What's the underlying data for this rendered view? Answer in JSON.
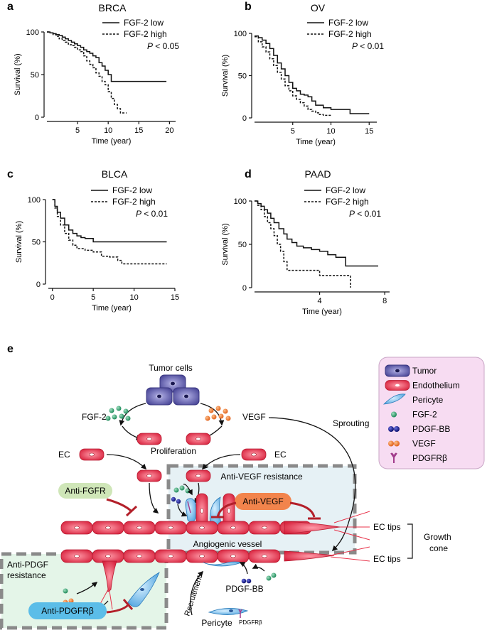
{
  "panels": {
    "a": {
      "letter": "a",
      "title": "BRCA",
      "ylabel": "Survival (%)",
      "xlabel": "Time (year)",
      "legend_low": "FGF-2 low",
      "legend_high": "FGF-2 high",
      "p_label": "P",
      "p_value": "< 0.05"
    },
    "b": {
      "letter": "b",
      "title": "OV",
      "ylabel": "Survival (%)",
      "xlabel": "Time (year)",
      "legend_low": "FGF-2 low",
      "legend_high": "FGF-2 high",
      "p_label": "P",
      "p_value": "< 0.01"
    },
    "c": {
      "letter": "c",
      "title": "BLCA",
      "ylabel": "Survival (%)",
      "xlabel": "Time (year)",
      "legend_low": "FGF-2 low",
      "legend_high": "FGF-2 high",
      "p_label": "P",
      "p_value": "< 0.01"
    },
    "d": {
      "letter": "d",
      "title": "PAAD",
      "ylabel": "Survival (%)",
      "xlabel": "Time (year)",
      "legend_low": "FGF-2 low",
      "legend_high": "FGF-2 high",
      "p_label": "P",
      "p_value": "< 0.01"
    }
  },
  "chart_data": [
    {
      "type": "line",
      "panel": "a",
      "title": "BRCA",
      "xlabel": "Time (year)",
      "ylabel": "Survival (%)",
      "xlim": [
        0,
        21
      ],
      "ylim": [
        0,
        100
      ],
      "xticks": [
        5,
        10,
        15,
        20
      ],
      "yticks": [
        0,
        50,
        100
      ],
      "legend": "top-right",
      "step": true,
      "series": [
        {
          "name": "FGF-2 low",
          "style": "solid",
          "x": [
            0,
            0.5,
            1,
            1.5,
            2,
            2.5,
            3,
            3.5,
            4,
            4.5,
            5,
            5.5,
            6,
            6.5,
            7,
            7.5,
            8,
            8.5,
            9,
            9.5,
            10,
            10.5,
            11,
            19.5
          ],
          "y": [
            100,
            99,
            98,
            97,
            96,
            94,
            92,
            90,
            88,
            86,
            84,
            82,
            79,
            77,
            75,
            72,
            70,
            64,
            60,
            55,
            50,
            42,
            42,
            42
          ]
        },
        {
          "name": "FGF-2 high",
          "style": "dashed",
          "x": [
            0,
            0.5,
            1,
            1.5,
            2,
            2.5,
            3,
            3.5,
            4,
            4.5,
            5,
            5.5,
            6,
            6.5,
            7,
            7.5,
            8,
            8.5,
            9,
            9.5,
            10,
            10.5,
            11,
            11.5,
            12,
            13
          ],
          "y": [
            100,
            99,
            97,
            95,
            92,
            90,
            88,
            85,
            84,
            82,
            79,
            77,
            72,
            66,
            62,
            58,
            52,
            48,
            42,
            38,
            30,
            22,
            15,
            10,
            5,
            5
          ]
        }
      ]
    },
    {
      "type": "line",
      "panel": "b",
      "title": "OV",
      "xlabel": "Time (year)",
      "ylabel": "Survival (%)",
      "xlim": [
        0,
        16
      ],
      "ylim": [
        0,
        100
      ],
      "xticks": [
        5,
        10,
        15
      ],
      "yticks": [
        0,
        50,
        100
      ],
      "legend": "top-right",
      "step": true,
      "series": [
        {
          "name": "FGF-2 low",
          "style": "solid",
          "x": [
            0,
            0.5,
            1,
            1.5,
            2,
            2.5,
            3,
            3.5,
            4,
            4.5,
            5,
            5.5,
            6,
            6.5,
            7,
            7.5,
            8,
            9,
            10,
            11,
            12.5,
            15
          ],
          "y": [
            97,
            95,
            92,
            88,
            82,
            74,
            65,
            58,
            50,
            42,
            35,
            32,
            28,
            27,
            25,
            20,
            15,
            12,
            10,
            10,
            5,
            5
          ]
        },
        {
          "name": "FGF-2 high",
          "style": "dashed",
          "x": [
            0,
            0.5,
            1,
            1.5,
            2,
            2.5,
            3,
            3.5,
            4,
            4.5,
            5,
            5.5,
            6,
            6.5,
            7,
            7.5,
            8,
            8.5,
            9,
            10
          ],
          "y": [
            96,
            90,
            84,
            78,
            70,
            62,
            54,
            46,
            38,
            32,
            26,
            22,
            18,
            14,
            10,
            8,
            6,
            4,
            3,
            3
          ]
        }
      ]
    },
    {
      "type": "line",
      "panel": "c",
      "title": "BLCA",
      "xlabel": "Time (year)",
      "ylabel": "Survival (%)",
      "xlim": [
        -0.5,
        15
      ],
      "ylim": [
        0,
        100
      ],
      "xticks": [
        0,
        5,
        10,
        15
      ],
      "yticks": [
        0,
        50,
        100
      ],
      "legend": "top-right",
      "step": true,
      "series": [
        {
          "name": "FGF-2 low",
          "style": "solid",
          "x": [
            0,
            0.3,
            0.6,
            1,
            1.5,
            2,
            2.5,
            3,
            3.5,
            4,
            5,
            14
          ],
          "y": [
            100,
            92,
            85,
            78,
            70,
            64,
            60,
            57,
            55,
            54,
            50,
            50
          ]
        },
        {
          "name": "FGF-2 high",
          "style": "dashed",
          "x": [
            0,
            0.3,
            0.6,
            1,
            1.5,
            2,
            2.5,
            3,
            4,
            5,
            6,
            7,
            8,
            8.5,
            14
          ],
          "y": [
            100,
            90,
            80,
            70,
            60,
            52,
            46,
            42,
            40,
            38,
            33,
            32,
            28,
            24,
            24
          ]
        }
      ]
    },
    {
      "type": "line",
      "panel": "d",
      "title": "PAAD",
      "xlabel": "Time (year)",
      "ylabel": "Survival (%)",
      "xlim": [
        0,
        8.3
      ],
      "ylim": [
        0,
        100
      ],
      "xticks": [
        4,
        8
      ],
      "yticks": [
        0,
        50,
        100
      ],
      "legend": "top-right",
      "step": true,
      "series": [
        {
          "name": "FGF-2 low",
          "style": "solid",
          "x": [
            0,
            0.2,
            0.4,
            0.6,
            0.8,
            1,
            1.2,
            1.5,
            1.8,
            2,
            2.3,
            2.6,
            3,
            3.5,
            4,
            4.5,
            5,
            5.6,
            7.6
          ],
          "y": [
            100,
            97,
            94,
            90,
            86,
            80,
            75,
            68,
            62,
            56,
            52,
            48,
            46,
            44,
            42,
            38,
            35,
            25,
            25
          ]
        },
        {
          "name": "FGF-2 high",
          "style": "dashed",
          "x": [
            0,
            0.2,
            0.4,
            0.6,
            0.8,
            1,
            1.2,
            1.4,
            1.6,
            1.8,
            2,
            4,
            5.9
          ],
          "y": [
            100,
            95,
            90,
            82,
            75,
            68,
            60,
            50,
            42,
            30,
            20,
            14,
            0
          ]
        }
      ]
    }
  ],
  "diagram": {
    "letter": "e",
    "tumor_cells": "Tumor cells",
    "fgf2": "FGF-2",
    "vegf": "VEGF",
    "sprouting": "Sprouting",
    "ec_left": "EC",
    "ec_right": "EC",
    "proliferation": "Proliferation",
    "anti_fgfr": "Anti-FGFR",
    "anti_vegf_resistance": "Anti-VEGF resistance",
    "anti_vegf": "Anti-VEGF",
    "anti_pdgf_resistance_1": "Anti-PDGF",
    "anti_pdgf_resistance_2": "resistance",
    "anti_pdgfrb": "Anti-PDGFRβ",
    "angiogenic_vessel": "Angiogenic vessel",
    "ec_tips_1": "EC tips",
    "ec_tips_2": "EC tips",
    "growth_cone_1": "Growth",
    "growth_cone_2": "cone",
    "pdgf_bb": "PDGF-BB",
    "recruitment": "Recruitment",
    "pericyte": "Pericyte",
    "pdgfrb_small": "PDGFRβ",
    "legend": [
      {
        "icon": "tumor-cell-icon",
        "label": "Tumor"
      },
      {
        "icon": "endothelium-icon",
        "label": "Endothelium"
      },
      {
        "icon": "pericyte-icon",
        "label": "Pericyte"
      },
      {
        "icon": "fgf2-dot-icon",
        "label": "FGF-2"
      },
      {
        "icon": "pdgfbb-dot-icon",
        "label": "PDGF-BB"
      },
      {
        "icon": "vegf-dot-icon",
        "label": "VEGF"
      },
      {
        "icon": "pdgfrb-receptor-icon",
        "label": "PDGFRβ"
      }
    ],
    "colors": {
      "tumor": "#5b58a8",
      "endothelium": "#e8334a",
      "pericyte": "#5aaee6",
      "fgf2": "#2e9a6a",
      "pdgfbb": "#1b1f8c",
      "vegf": "#f07a2a",
      "pdgfrb": "#a23c8c",
      "inhibitor": "#b3202a",
      "anti_fgfr_box": "#cfe6b8",
      "anti_vegf_box": "#f2844c",
      "anti_pdgfrb_box": "#5bbde8",
      "vegf_region": "#e6f1f5",
      "pdgf_region": "#e4f5e8",
      "legend_box": "#f7dcf2"
    }
  }
}
